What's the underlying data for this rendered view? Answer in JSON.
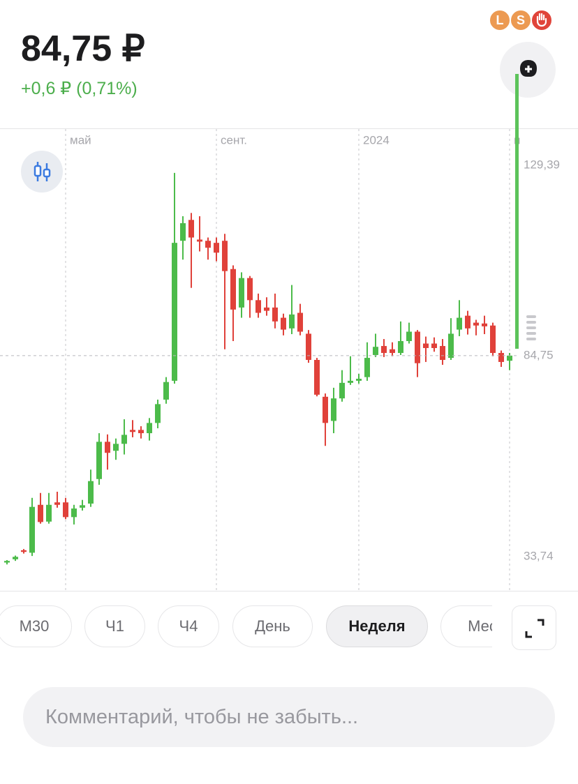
{
  "header": {
    "price": "84,75 ₽",
    "change": "+0,6 ₽ (0,71%)",
    "badges": [
      "L",
      "S"
    ]
  },
  "chart_data": {
    "type": "candlestick",
    "open": [
      34.2,
      35.0,
      37.2,
      36.6,
      48.3,
      44.2,
      48.9,
      48.9,
      45.3,
      47.6,
      48.6,
      54.6,
      63.7,
      61.5,
      63.2,
      66.6,
      66.6,
      65.8,
      68.3,
      74.0,
      78.6,
      112.8,
      117.9,
      113.1,
      112.8,
      112.3,
      112.8,
      105.9,
      96.5,
      103.7,
      98.3,
      96.5,
      96.5,
      94.0,
      91.4,
      95.2,
      90.1,
      83.7,
      74.7,
      68.8,
      74.3,
      78.1,
      78.6,
      79.5,
      84.9,
      87.1,
      86.3,
      85.4,
      88.3,
      90.6,
      87.7,
      87.7,
      87.1,
      84.2,
      91.1,
      94.5,
      92.8,
      92.6,
      92.1,
      85.4,
      83.5
    ],
    "high": [
      34.8,
      35.9,
      37.5,
      50.0,
      51.2,
      51.2,
      51.5,
      50.0,
      48.3,
      49.5,
      56.9,
      65.8,
      65.5,
      64.5,
      69.2,
      69.0,
      67.5,
      69.5,
      74.0,
      79.5,
      129.39,
      118.8,
      119.6,
      118.8,
      113.6,
      113.6,
      114.5,
      106.8,
      105.1,
      104.2,
      99.9,
      99.0,
      99.9,
      95.0,
      102.0,
      97.4,
      91.0,
      84.2,
      75.5,
      76.9,
      81.2,
      84.6,
      80.3,
      88.0,
      90.1,
      88.8,
      88.0,
      93.1,
      92.8,
      91.0,
      89.4,
      89.2,
      88.8,
      93.9,
      98.3,
      95.7,
      93.5,
      94.5,
      92.8,
      86.0,
      85.4
    ],
    "low": [
      33.74,
      34.6,
      36.4,
      35.8,
      43.7,
      43.7,
      47.6,
      44.8,
      43.5,
      46.9,
      47.8,
      53.2,
      56.9,
      59.3,
      60.6,
      64.8,
      64.5,
      64.0,
      67.0,
      73.0,
      77.9,
      108.2,
      101.3,
      110.2,
      108.2,
      107.8,
      86.3,
      88.3,
      94.0,
      94.0,
      94.0,
      94.5,
      91.4,
      89.7,
      90.0,
      89.7,
      83.0,
      74.8,
      62.7,
      65.8,
      73.5,
      77.6,
      77.9,
      78.6,
      84.4,
      84.4,
      84.6,
      84.9,
      87.7,
      79.5,
      83.2,
      85.7,
      82.5,
      83.7,
      89.5,
      89.9,
      89.7,
      90.0,
      84.6,
      82.0,
      81.2
    ],
    "close": [
      34.6,
      35.6,
      36.8,
      47.8,
      44.1,
      48.3,
      48.3,
      45.3,
      47.4,
      48.2,
      54.1,
      63.7,
      61.0,
      63.2,
      65.4,
      66.1,
      65.8,
      68.3,
      72.9,
      78.3,
      112.3,
      117.1,
      113.6,
      112.6,
      111.1,
      109.9,
      105.4,
      96.0,
      103.7,
      98.3,
      95.2,
      95.7,
      93.1,
      91.1,
      94.8,
      90.6,
      83.7,
      75.2,
      68.3,
      74.3,
      78.1,
      78.6,
      79.1,
      84.2,
      86.9,
      85.4,
      85.4,
      88.3,
      90.6,
      82.9,
      86.6,
      86.6,
      83.7,
      90.1,
      94.0,
      91.4,
      92.1,
      91.9,
      85.4,
      83.2,
      84.75
    ],
    "up_color": "#4cbb4a",
    "down_color": "#e0413a",
    "ylim": [
      27.3,
      140.1
    ],
    "yticks": [
      {
        "value": 129.39,
        "label": "129,39"
      },
      {
        "value": 84.75,
        "label": "84,75"
      },
      {
        "value": 33.74,
        "label": "33,74"
      }
    ],
    "price_line_tick": 1,
    "xticks": [
      {
        "value": 7,
        "label": "май"
      },
      {
        "value": 25,
        "label": "сент."
      },
      {
        "value": 42,
        "label": "2024"
      },
      {
        "value": 60,
        "label": "и"
      }
    ]
  },
  "timeframes": [
    "M30",
    "Ч1",
    "Ч4",
    "День",
    "Неделя",
    "Мес"
  ],
  "selected": 4,
  "comment_placeholder": "Комментарий, чтобы не забыть..."
}
